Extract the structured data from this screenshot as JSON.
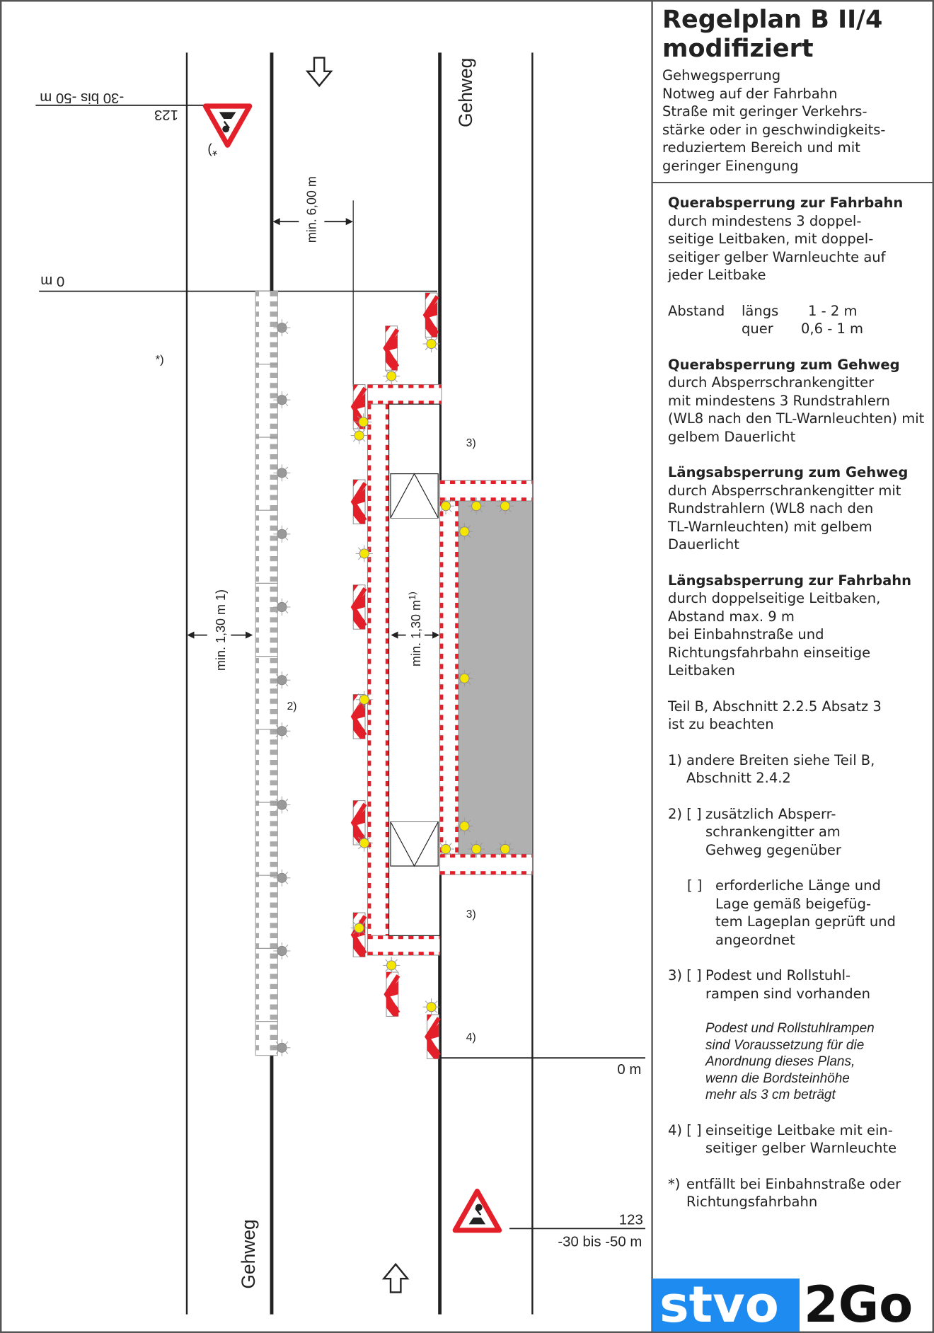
{
  "panel": {
    "title_line1": "Regelplan B II/4",
    "title_line2": "modifiziert",
    "subtitle": "Gehwegsperrung\nNotweg auf der Fahrbahn\nStraße mit geringer Verkehrs-\nstärke oder in geschwindigkeits-\nreduziertem Bereich und mit\ngeringer Einengung",
    "sections": [
      {
        "heading": "Querabsperrung zur Fahrbahn",
        "text": "durch mindestens 3 doppel-\nseitige Leitbaken, mit doppel-\nseitiger gelber Warnleuchte auf\njeder Leitbake"
      },
      {
        "heading": "Querabsperrung zum Gehweg",
        "text": "durch Absperrschrankengitter\nmit mindestens 3 Rundstrahlern\n(WL8 nach den TL-Warnleuchten) mit\ngelbem Dauerlicht"
      },
      {
        "heading": "Längsabsperrung zum Gehweg",
        "text": "durch Absperrschrankengitter mit\nRundstrahlern (WL8 nach den\nTL-Warnleuchten) mit gelbem\nDauerlicht"
      },
      {
        "heading": "Längsabsperrung zur Fahrbahn",
        "text": "durch doppelseitige Leitbaken,\nAbstand max. 9 m\nbei Einbahnstraße und\nRichtungsfahrbahn einseitige\nLeitbaken"
      }
    ],
    "abstand": {
      "label": "Abstand",
      "laengs_label": "längs",
      "laengs_value": "1 - 2 m",
      "quer_label": "quer",
      "quer_value": "0,6 - 1 m"
    },
    "teil_b": "Teil B, Abschnitt 2.2.5 Absatz 3\nist zu beachten",
    "notes": {
      "n1_marker": "1)",
      "n1": "andere Breiten siehe Teil B,\nAbschnitt 2.4.2",
      "n2_marker": "2) [ ]",
      "n2": "zusätzlich Absperr-\nschrankengitter am\nGehweg gegenüber",
      "n2b_marker": "[ ]",
      "n2b": "erforderliche Länge und\nLage gemäß beigefüg-\ntem Lageplan geprüft und\nangeordnet",
      "n3_marker": "3) [ ]",
      "n3": "Podest und Rollstuhl-\nrampen sind vorhanden",
      "n3_italic": "Podest und Rollstuhlrampen\nsind Voraussetzung für die\nAnordnung dieses Plans,\nwenn die Bordsteinhöhe\nmehr als 3 cm beträgt",
      "n4_marker": "4) [ ]",
      "n4": "einseitige Leitbake mit ein-\nseitiger gelber Warnleuchte",
      "nstar_marker": "*)",
      "nstar": "entfällt bei Einbahnstraße oder\nRichtungsfahrbahn"
    },
    "logo": {
      "part1": "stvo",
      "part2": "2Go",
      "color": "#1e8bf0"
    }
  },
  "diagram": {
    "gehweg_top": "Gehweg",
    "gehweg_bottom": "Gehweg",
    "dist_top": "-30 bis -50 m",
    "sign_number_top": "123",
    "zero_top": "0 m",
    "star_top": "*)",
    "star_left": "*)",
    "min_6": "min. 6,00 m",
    "min_130_left": "min. 1,30 m 1)",
    "min_130_mid": "min. 1,30 m",
    "min_130_mid_sup": "1)",
    "note2": "2)",
    "note3_top": "3)",
    "note3_bottom": "3)",
    "note4": "4)",
    "zero_bottom": "0 m",
    "sign_number_bottom": "123",
    "dist_bottom": "-30 bis -50 m",
    "colors": {
      "red": "#e3202a",
      "yellow": "#f5e600",
      "work_area": "#b0b0b0",
      "barrier_gray": "#aaaaaa"
    }
  }
}
